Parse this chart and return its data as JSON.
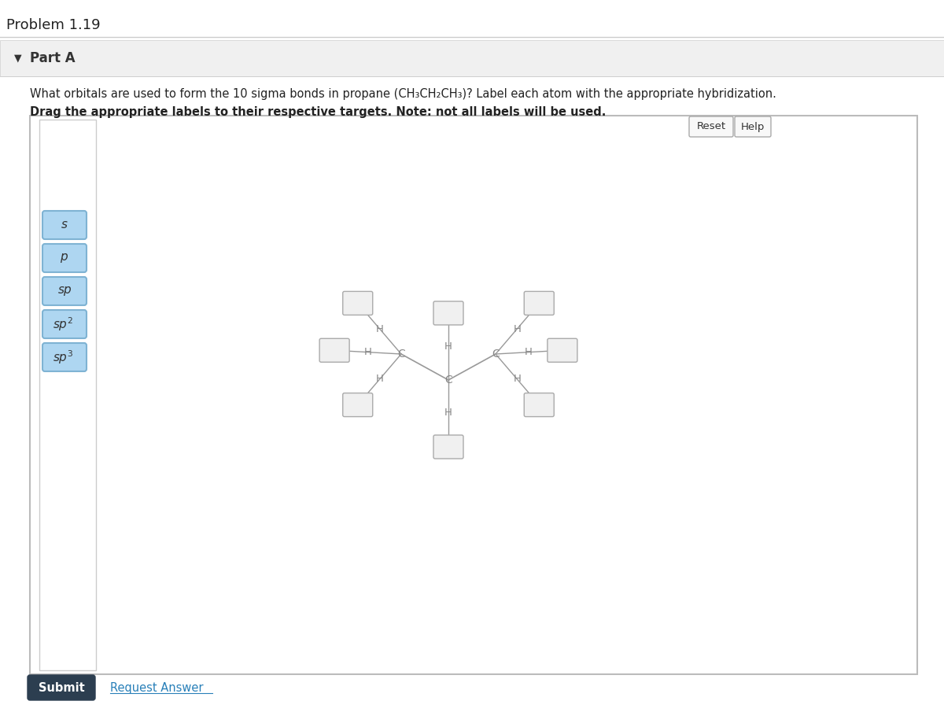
{
  "title": "Problem 1.19",
  "part": "Part A",
  "question_line1": "What orbitals are used to form the 10 sigma bonds in propane (CH₃CH₂CH₃)? Label each atom with the appropriate hybridization.",
  "question_line2": "Drag the appropriate labels to their respective targets. Note: not all labels will be used.",
  "bg_color": "#ffffff",
  "label_buttons": [
    "s",
    "p",
    "sp",
    "sp²",
    "sp³"
  ],
  "button_color": "#aed6f1",
  "button_border": "#7fb3d3",
  "submit_bg": "#2c3e50",
  "submit_fg": "#ffffff",
  "line_color": "#999999",
  "box_fill": "#f0f0f0",
  "box_edge": "#aaaaaa",
  "atom_color": "#888888",
  "panel_border": "#bbbbbb",
  "sidebar_border": "#cccccc",
  "part_a_bg": "#f0f0f0",
  "divider_color": "#cccccc",
  "reset_help_bg": "#f8f8f8",
  "reset_help_border": "#aaaaaa",
  "link_color": "#2980b9",
  "text_color": "#222222",
  "dark_text": "#333333"
}
